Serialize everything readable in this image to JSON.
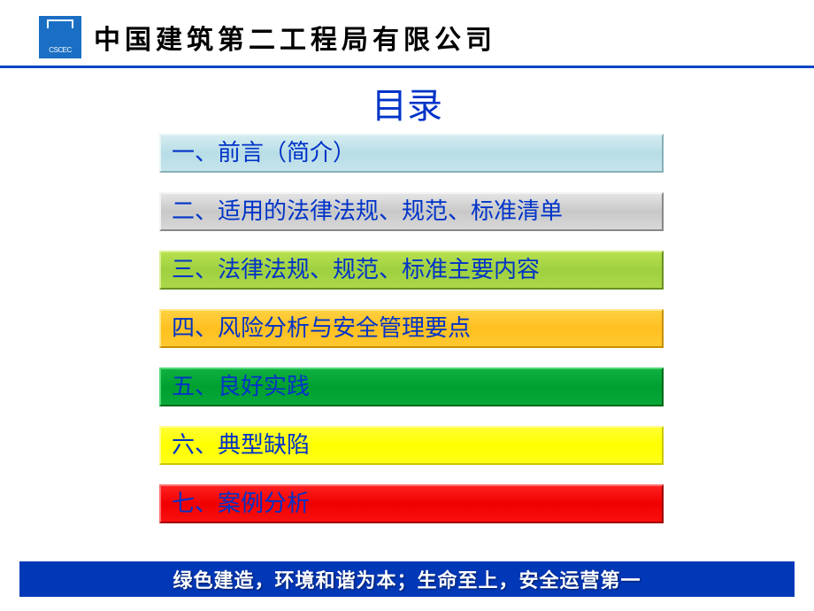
{
  "header": {
    "company_name": "中国建筑第二工程局有限公司",
    "logo_text": "CSCEC"
  },
  "title": "目录",
  "toc": {
    "items": [
      {
        "label": "一、前言（简介）",
        "bg_colors": [
          "#d4ecf0",
          "#b8dde6",
          "#c5e4ec"
        ],
        "text_color": "#0033c8"
      },
      {
        "label": "二、适用的法律法规、规范、标准清单",
        "bg_colors": [
          "#e4e4e4",
          "#c8c8c8",
          "#d8d8d8"
        ],
        "text_color": "#0033c8"
      },
      {
        "label": "三、法律法规、规范、标准主要内容",
        "bg_colors": [
          "#b8e050",
          "#9ed040",
          "#add848"
        ],
        "text_color": "#0033c8"
      },
      {
        "label": "四、风险分析与安全管理要点",
        "bg_colors": [
          "#ffd040",
          "#ffc020",
          "#ffc830"
        ],
        "text_color": "#0033c8"
      },
      {
        "label": "五、良好实践",
        "bg_colors": [
          "#10b040",
          "#00a030",
          "#08a838"
        ],
        "text_color": "#0033c8"
      },
      {
        "label": "六、典型缺陷",
        "bg_colors": [
          "#ffff30",
          "#ffff00",
          "#ffff18"
        ],
        "text_color": "#0033c8"
      },
      {
        "label": "七、案例分析",
        "bg_colors": [
          "#ff2020",
          "#f00000",
          "#f81010"
        ],
        "text_color": "#0033c8"
      }
    ],
    "item_width": 570,
    "item_height": 44,
    "item_gap": 22,
    "font_size": 26
  },
  "footer": {
    "text": "绿色建造，环境和谐为本；生命至上，安全运营第一",
    "bg_color": "#0038b8",
    "text_color": "#ffffff"
  },
  "styling": {
    "page_bg": "#ffffff",
    "header_border_color": "#0046c8",
    "title_color": "#0033c8",
    "title_fontsize": 40,
    "company_fontsize": 30
  }
}
